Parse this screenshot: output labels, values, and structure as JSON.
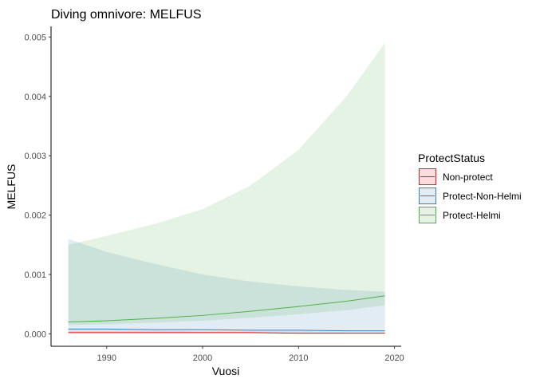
{
  "chart_data": {
    "type": "line",
    "title": "Diving omnivore: MELFUS",
    "xlabel": "Vuosi",
    "ylabel": "MELFUS",
    "xlim": [
      1984.2,
      2020.7
    ],
    "ylim": [
      -0.00021,
      0.00518
    ],
    "x_ticks": [
      1990,
      2000,
      2010,
      2020
    ],
    "x_tick_labels": [
      "1990",
      "2000",
      "2010",
      "2020"
    ],
    "y_ticks": [
      0,
      0.001,
      0.002,
      0.003,
      0.004,
      0.005
    ],
    "y_tick_labels": [
      "0.000",
      "0.001",
      "0.002",
      "0.003",
      "0.004",
      "0.005"
    ],
    "grid": false,
    "legend": {
      "title": "ProtectStatus",
      "position": "right"
    },
    "x": [
      1986,
      1990,
      1995,
      2000,
      2005,
      2010,
      2015,
      2019
    ],
    "series": [
      {
        "name": "Non-protect",
        "color": "#e41a1c",
        "fill": "#e41a1c",
        "values": [
          2e-05,
          2e-05,
          2e-05,
          2e-05,
          2e-05,
          1e-05,
          1e-05,
          1e-05
        ],
        "lower": [
          1e-05,
          1e-05,
          1e-05,
          1e-05,
          1e-05,
          1e-05,
          1e-05,
          1e-05
        ],
        "upper": [
          5e-05,
          5e-05,
          5e-05,
          4e-05,
          4e-05,
          4e-05,
          3e-05,
          3e-05
        ]
      },
      {
        "name": "Protect-Non-Helmi",
        "color": "#377eb8",
        "fill": "#377eb8",
        "values": [
          8e-05,
          8e-05,
          7e-05,
          7e-05,
          6e-05,
          6e-05,
          5e-05,
          5e-05
        ],
        "lower": [
          2e-05,
          2e-05,
          2e-05,
          2e-05,
          2e-05,
          2e-05,
          2e-05,
          2e-05
        ],
        "upper": [
          0.0016,
          0.00138,
          0.00118,
          0.001,
          0.00088,
          0.0008,
          0.00074,
          0.00071
        ]
      },
      {
        "name": "Protect-Helmi",
        "color": "#4daf4a",
        "fill": "#4daf4a",
        "values": [
          0.0002,
          0.00022,
          0.00026,
          0.00031,
          0.00038,
          0.00046,
          0.00055,
          0.00064
        ],
        "lower": [
          0.00015,
          0.00016,
          0.00019,
          0.00022,
          0.00027,
          0.00033,
          0.0004,
          0.00048
        ],
        "upper": [
          0.0015,
          0.00165,
          0.00185,
          0.0021,
          0.0025,
          0.0031,
          0.004,
          0.0049
        ]
      }
    ]
  }
}
